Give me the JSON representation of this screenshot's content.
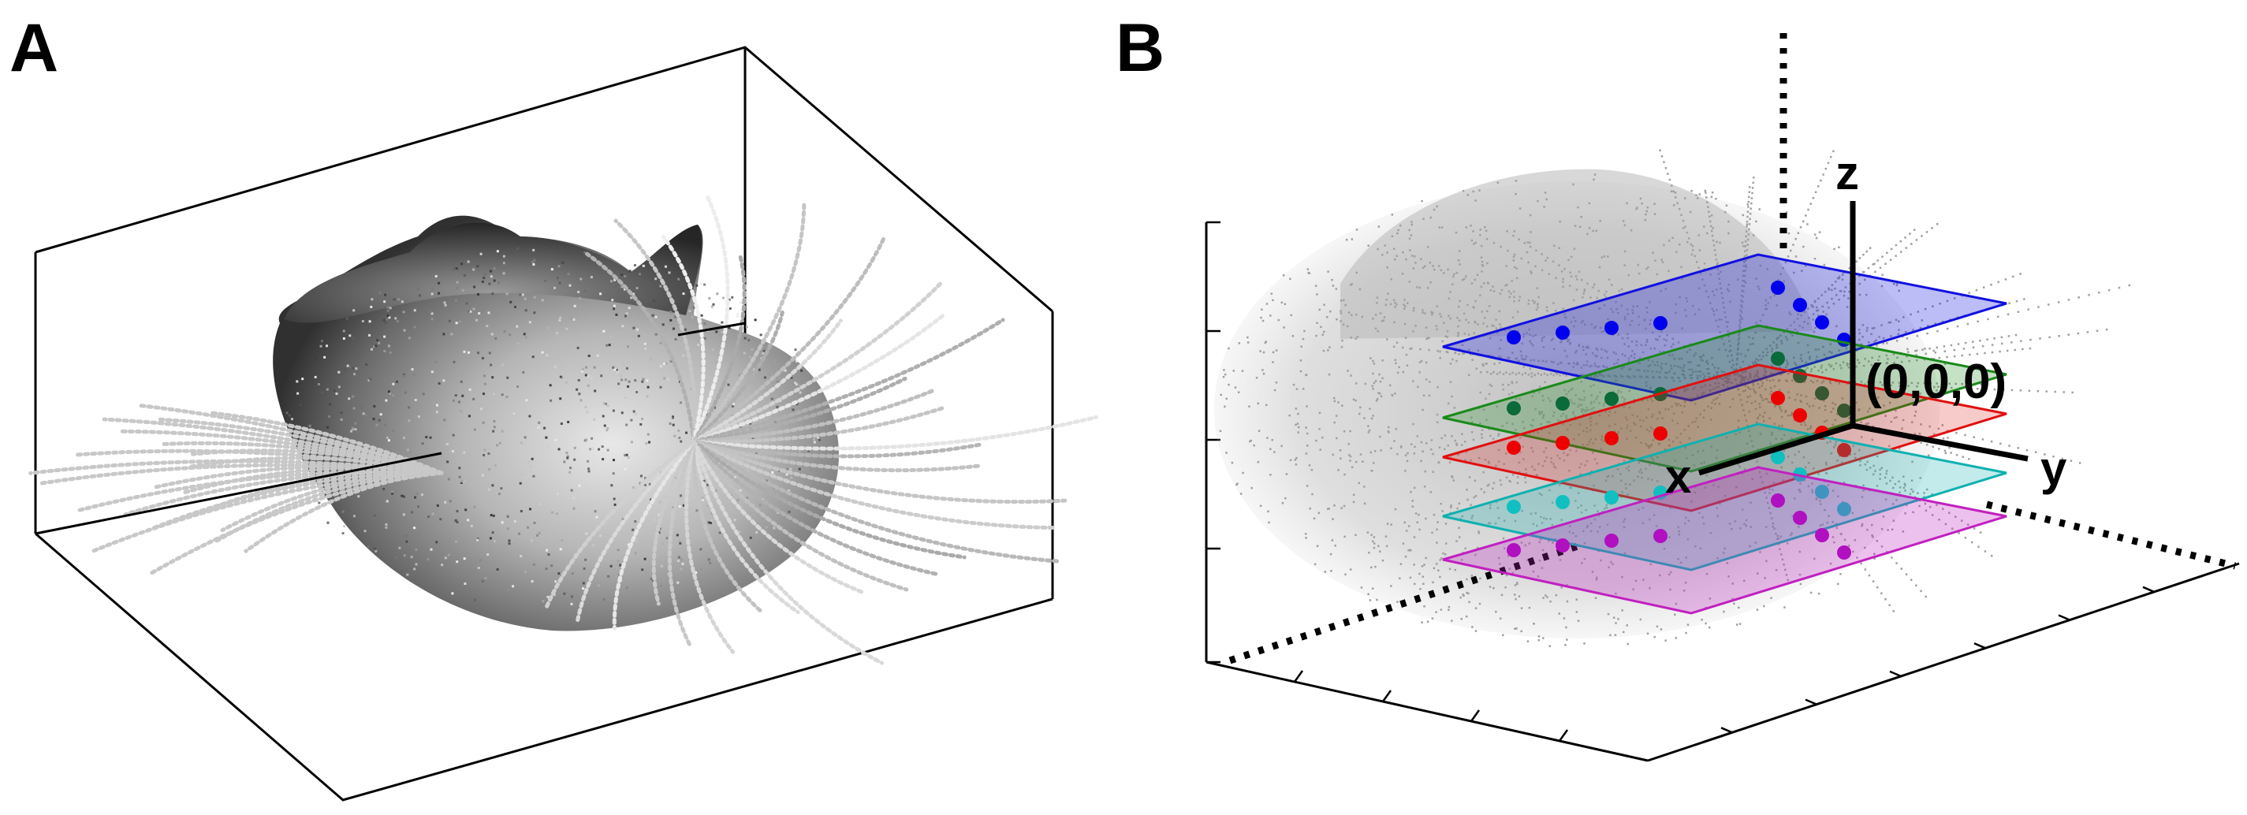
{
  "panels": [
    {
      "letter": "A"
    },
    {
      "letter": "B"
    }
  ],
  "axes_labels": {
    "x": "x",
    "y": "y",
    "z": "z",
    "origin": "(0,0,0)"
  },
  "colors": {
    "point_cloud_gray": "#a0a0a0",
    "plane_blue": "#1010e0",
    "plane_green": "#1a8a1a",
    "plane_red": "#e01010",
    "plane_cyan": "#10b0b0",
    "plane_magenta": "#c020c0",
    "marker_blue": "#0000ee",
    "marker_green": "#0a6a3a",
    "marker_red": "#ee0000",
    "marker_cyan": "#10c0c0",
    "marker_magenta": "#b010c0"
  },
  "planes": [
    {
      "name": "blue-plane",
      "color_key": "plane_blue"
    },
    {
      "name": "green-plane",
      "color_key": "plane_green"
    },
    {
      "name": "red-plane",
      "color_key": "plane_red"
    },
    {
      "name": "cyan-plane",
      "color_key": "plane_cyan"
    },
    {
      "name": "magenta-plane",
      "color_key": "plane_magenta"
    }
  ]
}
